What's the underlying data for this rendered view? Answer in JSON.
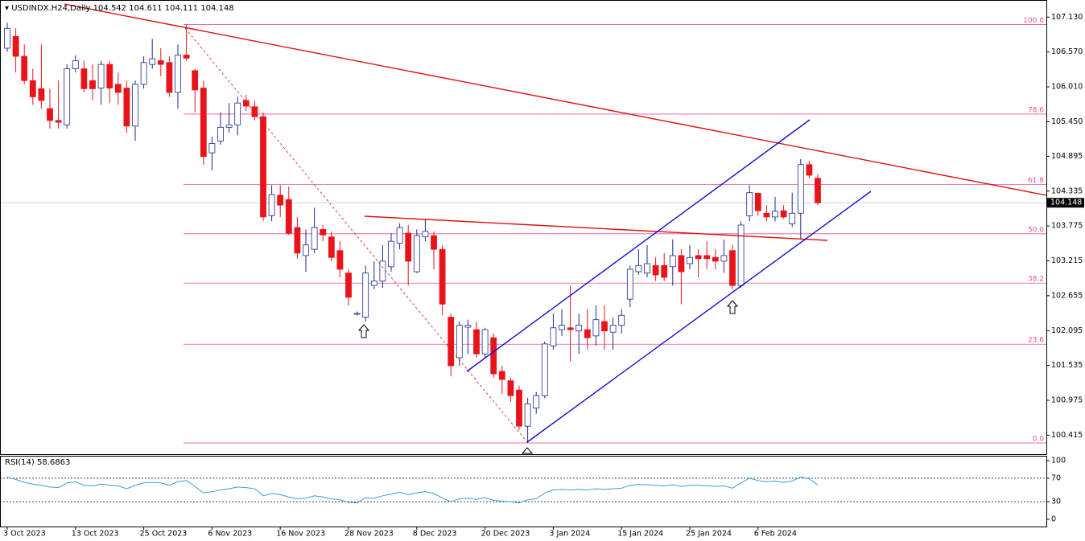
{
  "chart_data": [
    {
      "type": "candlestick",
      "title": "USDINDX.H24,Daily",
      "categories": [
        "3 Oct 2023",
        null,
        null,
        null,
        null,
        null,
        null,
        null,
        "13 Oct 2023",
        null,
        null,
        null,
        null,
        null,
        null,
        null,
        "25 Oct 2023",
        null,
        null,
        null,
        null,
        null,
        null,
        null,
        "6 Nov 2023",
        null,
        null,
        null,
        null,
        null,
        null,
        null,
        "16 Nov 2023",
        null,
        null,
        null,
        null,
        null,
        null,
        null,
        "28 Nov 2023",
        null,
        null,
        null,
        null,
        null,
        null,
        null,
        "8 Dec 2023",
        null,
        null,
        null,
        null,
        null,
        null,
        null,
        "20 Dec 2023",
        null,
        null,
        null,
        null,
        null,
        null,
        null,
        "3 Jan 2024",
        null,
        null,
        null,
        null,
        null,
        null,
        null,
        "15 Jan 2024",
        null,
        null,
        null,
        null,
        null,
        null,
        null,
        "25 Jan 2024",
        null,
        null,
        null,
        null,
        null,
        null,
        null,
        "6 Feb 2024",
        null,
        null,
        null,
        null,
        null,
        null,
        null
      ],
      "open": [
        106.63,
        106.82,
        106.5,
        106.11,
        105.98,
        105.66,
        105.47,
        105.4,
        106.3,
        106.3,
        106.11,
        105.99,
        106.37,
        106.05,
        105.99,
        105.38,
        106.05,
        106.37,
        106.43,
        106.4,
        105.92,
        106.52,
        106.27,
        105.99,
        104.95,
        105.14,
        105.36,
        105.4,
        105.79,
        105.69,
        105.53,
        103.94,
        104.27,
        104.2,
        103.75,
        103.3,
        103.4,
        103.72,
        103.6,
        103.38,
        103.02,
        102.37,
        102.31,
        102.82,
        102.89,
        103.12,
        103.5,
        103.66,
        103.04,
        103.6,
        103.62,
        103.4,
        102.31,
        101.66,
        102.15,
        102.11,
        101.72,
        101.98,
        101.44,
        101.29,
        101.14,
        100.56,
        100.85,
        101.05,
        101.85,
        102.11,
        102.14,
        102.09,
        102.11,
        102.01,
        102.24,
        102.07,
        102.18,
        102.6,
        103.04,
        103.02,
        103.14,
        103.14,
        103.12,
        103.3,
        103.17,
        103.3,
        103.3,
        103.27,
        103.21,
        103.38,
        102.82,
        103.94,
        104.3,
        103.98,
        103.92,
        104.02,
        103.81,
        103.98,
        104.76,
        104.542
      ],
      "high": [
        107.04,
        106.95,
        106.69,
        106.3,
        106.69,
        105.98,
        106.11,
        106.37,
        106.52,
        106.43,
        106.37,
        106.43,
        106.43,
        106.24,
        106.11,
        106.11,
        106.5,
        106.78,
        106.63,
        106.5,
        106.69,
        107.01,
        106.3,
        106.11,
        105.21,
        105.6,
        105.75,
        105.85,
        105.88,
        105.79,
        105.6,
        104.43,
        104.43,
        104.41,
        103.92,
        103.72,
        104.07,
        103.79,
        103.69,
        103.53,
        103.08,
        102.4,
        103.14,
        103.21,
        103.47,
        103.66,
        103.82,
        103.79,
        103.72,
        103.89,
        103.69,
        103.47,
        102.37,
        102.24,
        102.27,
        102.24,
        102.14,
        102.05,
        101.53,
        101.34,
        101.21,
        101.01,
        101.11,
        101.92,
        102.37,
        102.44,
        102.82,
        102.37,
        102.44,
        102.5,
        102.5,
        102.31,
        102.44,
        103.14,
        103.4,
        103.47,
        103.27,
        103.34,
        103.56,
        103.4,
        103.47,
        103.4,
        103.53,
        103.4,
        103.56,
        103.47,
        103.85,
        104.43,
        104.31,
        104.11,
        104.24,
        104.11,
        104.31,
        104.85,
        104.82,
        104.611
      ],
      "low": [
        106.57,
        106.24,
        106.05,
        105.72,
        105.66,
        105.34,
        105.34,
        105.34,
        106.24,
        105.92,
        105.79,
        105.72,
        105.75,
        105.72,
        105.27,
        105.14,
        105.98,
        106.3,
        106.18,
        105.85,
        105.66,
        106.43,
        105.6,
        104.76,
        104.67,
        105.08,
        105.27,
        105.23,
        105.62,
        105.47,
        103.85,
        103.85,
        103.92,
        103.63,
        103.25,
        103.04,
        103.34,
        103.53,
        103.21,
        102.95,
        102.5,
        102.34,
        102.24,
        102.76,
        102.78,
        103.04,
        103.4,
        102.82,
        103.02,
        103.53,
        103.08,
        102.34,
        101.36,
        101.53,
        101.72,
        101.66,
        101.66,
        101.34,
        101.08,
        100.95,
        100.5,
        100.29,
        100.76,
        101.01,
        101.79,
        102.01,
        101.6,
        101.72,
        101.79,
        101.85,
        101.79,
        101.79,
        102.05,
        102.47,
        102.99,
        102.95,
        102.89,
        102.89,
        102.82,
        102.52,
        103.08,
        102.95,
        103.08,
        103.08,
        103.02,
        102.76,
        102.78,
        103.85,
        103.94,
        103.85,
        103.85,
        103.89,
        103.76,
        103.56,
        104.54,
        104.111
      ],
      "close": [
        106.95,
        106.5,
        106.11,
        105.85,
        105.79,
        105.47,
        105.44,
        106.3,
        106.43,
        105.98,
        105.98,
        106.37,
        105.99,
        105.92,
        105.38,
        106.05,
        106.4,
        106.46,
        106.37,
        105.92,
        106.52,
        106.47,
        105.96,
        104.89,
        105.1,
        105.36,
        105.4,
        105.75,
        105.7,
        105.53,
        103.92,
        104.28,
        104.11,
        103.66,
        103.34,
        103.47,
        103.75,
        103.63,
        103.27,
        103.08,
        102.63,
        102.37,
        103.02,
        102.89,
        103.21,
        103.53,
        103.75,
        103.21,
        103.62,
        103.69,
        103.4,
        102.52,
        101.53,
        102.18,
        102.18,
        101.72,
        102.11,
        101.4,
        101.31,
        101.05,
        100.56,
        100.92,
        101.05,
        101.88,
        102.14,
        102.18,
        102.11,
        102.18,
        101.98,
        102.27,
        102.09,
        102.18,
        102.34,
        103.08,
        103.14,
        103.17,
        102.99,
        102.95,
        103.3,
        103.04,
        103.27,
        103.25,
        103.25,
        103.21,
        103.3,
        102.82,
        103.79,
        104.31,
        104.02,
        103.92,
        104.01,
        103.92,
        103.98,
        104.76,
        104.59,
        104.148
      ],
      "up_color": "#ffffff",
      "up_edge": "#1d2b8f",
      "down_color": "#e8141a",
      "ylim": [
        100.11,
        107.34
      ],
      "yticks": [
        {
          "value": 107.13,
          "label": "107.130"
        },
        {
          "value": 106.57,
          "label": "106.570"
        },
        {
          "value": 106.01,
          "label": "106.010"
        },
        {
          "value": 105.45,
          "label": "105.450"
        },
        {
          "value": 104.895,
          "label": "104.895"
        },
        {
          "value": 104.335,
          "label": "104.335"
        },
        {
          "value": 103.775,
          "label": "103.775"
        },
        {
          "value": 103.215,
          "label": "103.215"
        },
        {
          "value": 102.655,
          "label": "102.655"
        },
        {
          "value": 102.095,
          "label": "102.095"
        },
        {
          "value": 101.535,
          "label": "101.535"
        },
        {
          "value": 100.975,
          "label": "100.975"
        },
        {
          "value": 100.415,
          "label": "100.415"
        }
      ],
      "fibonacci": {
        "low": 100.29,
        "high": 107.01,
        "color": "#e0559b",
        "levels": [
          {
            "value": 100,
            "label": "100.0"
          },
          {
            "value": 78.6,
            "label": "78.6"
          },
          {
            "value": 61.8,
            "label": "61.8"
          },
          {
            "value": 50,
            "label": "50.0"
          },
          {
            "value": 38.2,
            "label": "38.2"
          },
          {
            "value": 23.6,
            "label": "23.6"
          },
          {
            "value": 0,
            "label": "0.0"
          }
        ]
      }
    },
    {
      "type": "line",
      "name": "RSI(14)",
      "color": "#3d9be0",
      "values": [
        72,
        68,
        63,
        60,
        58,
        55,
        54,
        62,
        64,
        58,
        57,
        60,
        58,
        57,
        52,
        58,
        62,
        63,
        62,
        58,
        64,
        66,
        56,
        45,
        47,
        50,
        52,
        55,
        54,
        52,
        40,
        44,
        42,
        38,
        35,
        36,
        40,
        38,
        35,
        33,
        29,
        28,
        37,
        36,
        40,
        43,
        46,
        42,
        45,
        47,
        44,
        36,
        30,
        35,
        36,
        34,
        37,
        32,
        31,
        30,
        28,
        33,
        35,
        45,
        50,
        51,
        50,
        51,
        50,
        52,
        51,
        52,
        53,
        58,
        59,
        59,
        58,
        57,
        59,
        56,
        58,
        58,
        57,
        56,
        57,
        53,
        62,
        70,
        66,
        64,
        65,
        63,
        65,
        72,
        69,
        58.6863
      ],
      "ylim": [
        -12.3,
        108.2
      ],
      "yticks": [
        100,
        70,
        30,
        0
      ]
    }
  ]
}
